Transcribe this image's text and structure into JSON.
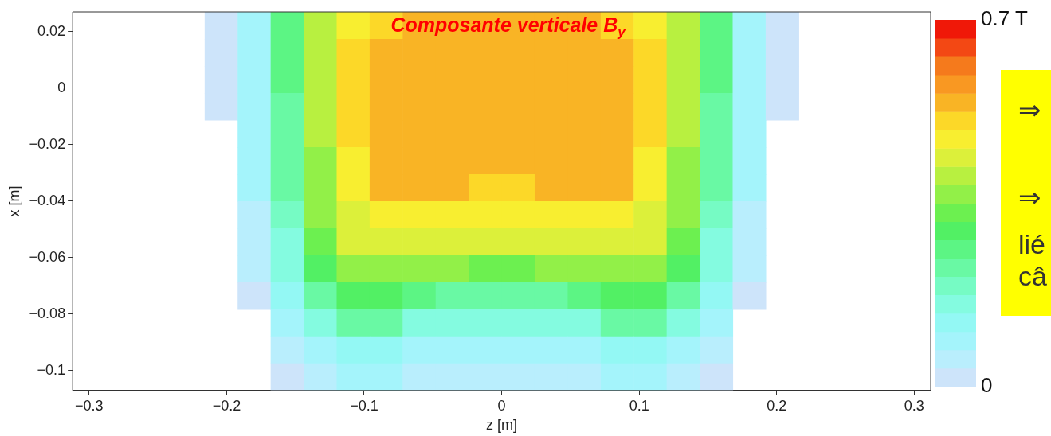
{
  "chart_data": {
    "type": "heatmap",
    "title": "Composante verticale B$_{y}$",
    "xlabel": "z [m]",
    "ylabel": "x [m]",
    "xlim": [
      -0.312,
      0.312
    ],
    "ylim": [
      -0.107,
      0.027
    ],
    "xticks": [
      {
        "value": -0.3,
        "label": "−0.3"
      },
      {
        "value": -0.2,
        "label": "−0.2"
      },
      {
        "value": -0.1,
        "label": "−0.1"
      },
      0,
      0.1,
      0.2,
      0.3
    ],
    "yticks": [
      0.02,
      0,
      {
        "value": -0.02,
        "label": "−0.02"
      },
      {
        "value": -0.04,
        "label": "−0.04"
      },
      {
        "value": -0.06,
        "label": "−0.06"
      },
      {
        "value": -0.08,
        "label": "−0.08"
      },
      {
        "value": -0.1,
        "label": "−0.1"
      }
    ],
    "clim": [
      0,
      0.7
    ],
    "cticks": [
      0,
      {
        "value": 0.7,
        "label": "0.7 T"
      }
    ],
    "cells": [
      [
        null,
        null,
        null,
        null,
        0.02,
        0.09,
        0.25,
        0.4,
        0.48,
        0.52,
        0.54,
        0.54,
        0.54,
        0.54,
        0.54,
        0.54,
        0.52,
        0.48,
        0.4,
        0.25,
        0.09,
        0.02,
        null,
        null,
        null,
        null
      ],
      [
        null,
        null,
        null,
        null,
        0.02,
        0.09,
        0.25,
        0.41,
        0.5,
        0.53,
        0.54,
        0.54,
        0.54,
        0.54,
        0.54,
        0.54,
        0.53,
        0.5,
        0.41,
        0.25,
        0.09,
        0.02,
        null,
        null,
        null,
        null
      ],
      [
        null,
        null,
        null,
        null,
        0.02,
        0.09,
        0.25,
        0.41,
        0.5,
        0.54,
        0.54,
        0.54,
        0.54,
        0.54,
        0.54,
        0.54,
        0.54,
        0.5,
        0.41,
        0.25,
        0.09,
        0.02,
        null,
        null,
        null,
        null
      ],
      [
        null,
        null,
        null,
        null,
        0.02,
        0.09,
        0.24,
        0.4,
        0.5,
        0.54,
        0.54,
        0.54,
        0.54,
        0.54,
        0.54,
        0.54,
        0.54,
        0.5,
        0.4,
        0.24,
        0.09,
        0.02,
        null,
        null,
        null,
        null
      ],
      [
        null,
        null,
        null,
        null,
        null,
        0.08,
        0.23,
        0.39,
        0.5,
        0.54,
        0.54,
        0.54,
        0.54,
        0.54,
        0.54,
        0.54,
        0.54,
        0.5,
        0.39,
        0.23,
        0.08,
        null,
        null,
        null,
        null,
        null
      ],
      [
        null,
        null,
        null,
        null,
        null,
        0.08,
        0.22,
        0.38,
        0.48,
        0.54,
        0.54,
        0.54,
        0.54,
        0.54,
        0.54,
        0.54,
        0.54,
        0.48,
        0.38,
        0.22,
        0.08,
        null,
        null,
        null,
        null,
        null
      ],
      [
        null,
        null,
        null,
        null,
        null,
        0.08,
        0.22,
        0.37,
        0.47,
        0.53,
        0.54,
        0.53,
        0.52,
        0.52,
        0.53,
        0.54,
        0.53,
        0.47,
        0.37,
        0.22,
        0.08,
        null,
        null,
        null,
        null,
        null
      ],
      [
        null,
        null,
        null,
        null,
        null,
        0.06,
        0.18,
        0.36,
        0.45,
        0.48,
        0.48,
        0.48,
        0.48,
        0.48,
        0.48,
        0.48,
        0.48,
        0.45,
        0.36,
        0.18,
        0.06,
        null,
        null,
        null,
        null,
        null
      ],
      [
        null,
        null,
        null,
        null,
        null,
        0.06,
        0.16,
        0.32,
        0.43,
        0.45,
        0.44,
        0.43,
        0.43,
        0.43,
        0.43,
        0.44,
        0.45,
        0.43,
        0.32,
        0.16,
        0.06,
        null,
        null,
        null,
        null,
        null
      ],
      [
        null,
        null,
        null,
        null,
        null,
        0.05,
        0.15,
        0.29,
        0.37,
        0.38,
        0.36,
        0.36,
        0.33,
        0.33,
        0.36,
        0.36,
        0.38,
        0.37,
        0.29,
        0.15,
        0.05,
        null,
        null,
        null,
        null,
        null
      ],
      [
        null,
        null,
        null,
        null,
        null,
        0.03,
        0.12,
        0.22,
        0.3,
        0.3,
        0.26,
        0.24,
        0.23,
        0.23,
        0.24,
        0.26,
        0.3,
        0.3,
        0.22,
        0.12,
        0.03,
        null,
        null,
        null,
        null,
        null
      ],
      [
        null,
        null,
        null,
        null,
        null,
        null,
        0.08,
        0.16,
        0.22,
        0.22,
        0.17,
        0.16,
        0.15,
        0.15,
        0.16,
        0.17,
        0.22,
        0.22,
        0.16,
        0.08,
        null,
        null,
        null,
        null,
        null,
        null
      ],
      [
        null,
        null,
        null,
        null,
        null,
        null,
        0.06,
        0.1,
        0.13,
        0.13,
        0.1,
        0.09,
        0.09,
        0.09,
        0.09,
        0.1,
        0.13,
        0.13,
        0.1,
        0.06,
        null,
        null,
        null,
        null,
        null,
        null
      ],
      [
        null,
        null,
        null,
        null,
        null,
        null,
        0.03,
        0.06,
        0.08,
        0.08,
        0.06,
        0.05,
        0.05,
        0.05,
        0.05,
        0.06,
        0.08,
        0.08,
        0.06,
        0.03,
        null,
        null,
        null,
        null,
        null,
        null
      ]
    ],
    "grid": false,
    "annotations": [
      "⇒",
      "⇒",
      "lié",
      "câ"
    ]
  }
}
